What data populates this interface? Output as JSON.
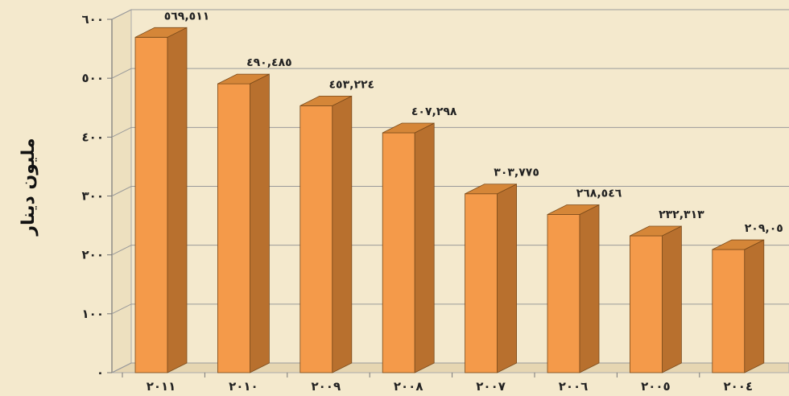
{
  "chart_data": {
    "type": "bar",
    "title": "",
    "xlabel": "",
    "ylabel": "مليون دينار",
    "categories": [
      "٢٠١١",
      "٢٠١٠",
      "٢٠٠٩",
      "٢٠٠٨",
      "٢٠٠٧",
      "٢٠٠٦",
      "٢٠٠٥",
      "٢٠٠٤"
    ],
    "values": [
      569.511,
      490.485,
      453.224,
      407.298,
      303.775,
      268.546,
      232.313,
      209.05
    ],
    "data_labels": [
      "٥٦٩,٥١١",
      "٤٩٠,٤٨٥",
      "٤٥٣,٢٢٤",
      "٤٠٧,٢٩٨",
      "٣٠٣,٧٧٥",
      "٢٦٨,٥٤٦",
      "٢٣٢,٣١٣",
      "٢٠٩,٠٥"
    ],
    "y_ticks": [
      0,
      100,
      200,
      300,
      400,
      500,
      600
    ],
    "y_tick_labels": [
      "٠",
      "١٠٠",
      "٢٠٠",
      "٣٠٠",
      "٤٠٠",
      "٥٠٠",
      "٦٠٠"
    ],
    "ylim": [
      0,
      600
    ],
    "grid": true,
    "legend": "none",
    "bar_colors": {
      "front": "#f49a4a",
      "side": "#b8702e",
      "top": "#d58638"
    },
    "background": "#f4e9cd"
  }
}
